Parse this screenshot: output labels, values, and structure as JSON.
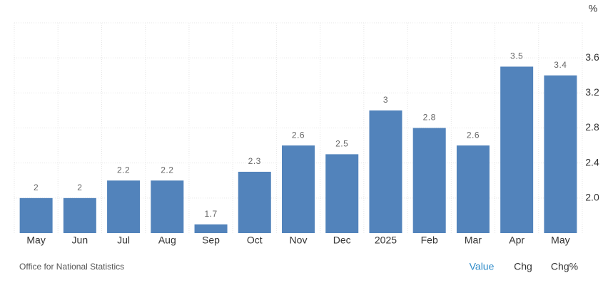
{
  "chart_data": {
    "type": "bar",
    "unit": "%",
    "categories": [
      "May",
      "Jun",
      "Jul",
      "Aug",
      "Sep",
      "Oct",
      "Nov",
      "Dec",
      "2025",
      "Feb",
      "Mar",
      "Apr",
      "May"
    ],
    "values": [
      2,
      2,
      2.2,
      2.2,
      1.7,
      2.3,
      2.6,
      2.5,
      3,
      2.8,
      2.6,
      3.5,
      3.4
    ],
    "color": "#5283bb",
    "ylim": [
      1.6,
      4.0
    ],
    "yticks": [
      {
        "value": 2,
        "label": "2.0"
      },
      2.4,
      2.8,
      3.2,
      3.6
    ],
    "grid": true
  },
  "footer": {
    "source": "Office for National Statistics",
    "tabs": [
      "Value",
      "Chg",
      "Chg%"
    ]
  }
}
